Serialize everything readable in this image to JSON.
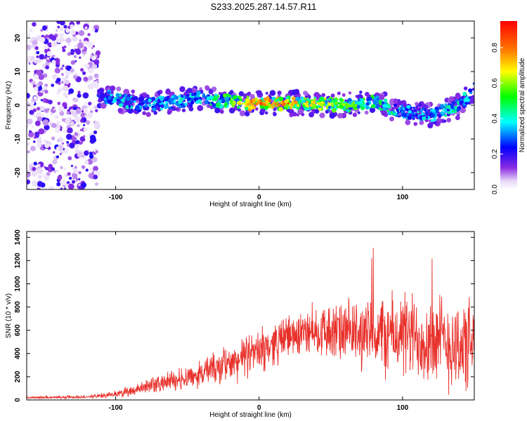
{
  "title": "S233.2025.287.14.57.R11",
  "chart_data": [
    {
      "type": "heatmap",
      "xlabel": "Height of straight line (km)",
      "ylabel": "Frequency (Hz)",
      "xlim": [
        -162,
        150
      ],
      "ylim": [
        -25,
        25
      ],
      "xticks": [
        -100,
        0,
        100
      ],
      "xtick_labels": [
        "-100",
        "0",
        "100"
      ],
      "yticks": [
        20,
        10,
        0,
        -10,
        -20
      ],
      "ytick_labels": [
        "20",
        "10",
        "0",
        "-10",
        "-20"
      ],
      "colorbar": {
        "label": "Normalized spectral amplitude",
        "range": [
          0,
          0.95
        ],
        "ticks": [
          0,
          0.2,
          0.4,
          0.6,
          0.8
        ],
        "tick_labels": [
          "0.0",
          "0.2",
          "0.4",
          "0.6",
          "0.8"
        ]
      },
      "ridge": {
        "x": [
          -112,
          -100,
          -80,
          -60,
          -40,
          -20,
          0,
          20,
          40,
          60,
          80,
          100,
          120,
          140,
          150
        ],
        "frequency": [
          3,
          2,
          0,
          1,
          2,
          1,
          0.5,
          0.5,
          0.5,
          0,
          1,
          -2,
          -3,
          0,
          5
        ],
        "amplitude": [
          0.3,
          0.45,
          0.4,
          0.45,
          0.45,
          0.6,
          0.85,
          0.8,
          0.7,
          0.6,
          0.55,
          0.45,
          0.4,
          0.5,
          0.3
        ]
      },
      "noise_region_x": [
        -162,
        -112
      ]
    },
    {
      "type": "line",
      "xlabel": "Height of straight line (km)",
      "ylabel": "SNR (10 * v/v)",
      "xlim": [
        -162,
        150
      ],
      "ylim": [
        0,
        1450
      ],
      "xticks": [
        -100,
        0,
        100
      ],
      "xtick_labels": [
        "-100",
        "0",
        "100"
      ],
      "yticks": [
        0,
        200,
        400,
        600,
        800,
        1000,
        1200,
        1400
      ],
      "ytick_labels": [
        "0",
        "200",
        "400",
        "600",
        "800",
        "1000",
        "1200",
        "1400"
      ],
      "series": [
        {
          "name": "SNR",
          "color": "#e8302a",
          "envelope_x": [
            -162,
            -120,
            -100,
            -80,
            -60,
            -40,
            -20,
            0,
            20,
            40,
            60,
            80,
            100,
            120,
            140,
            150
          ],
          "envelope_mean": [
            20,
            25,
            50,
            110,
            170,
            230,
            310,
            420,
            550,
            600,
            570,
            560,
            560,
            520,
            470,
            450
          ],
          "envelope_spread": [
            15,
            15,
            35,
            70,
            110,
            150,
            200,
            220,
            220,
            260,
            330,
            400,
            450,
            480,
            500,
            480
          ]
        }
      ]
    }
  ]
}
